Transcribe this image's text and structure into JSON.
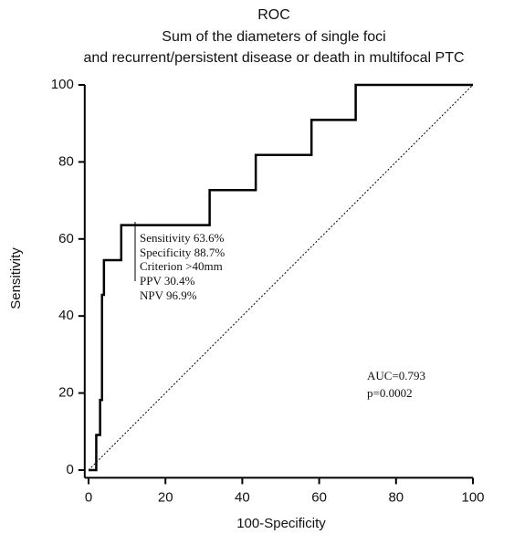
{
  "chart_data": {
    "type": "line",
    "title": "ROC",
    "subtitle": [
      "Sum of the diameters of single foci",
      "and recurrent/persistent disease or death in multifocal PTC"
    ],
    "x_label": "100-Specificity",
    "y_label": "Sensitivity",
    "xlim": [
      -1,
      100
    ],
    "ylim": [
      -2,
      100
    ],
    "xticks": [
      0,
      20,
      40,
      60,
      80,
      100
    ],
    "yticks": [
      0,
      20,
      40,
      60,
      80,
      100
    ],
    "series": [
      {
        "color": "#000000",
        "style": "solid",
        "x": [
          0,
          2,
          2,
          3,
          3,
          3.5,
          3.5,
          4,
          4,
          8.5,
          8.5,
          31.5,
          31.5,
          43.5,
          43.5,
          58,
          58,
          69.5,
          69.5,
          100
        ],
        "values": [
          0,
          0,
          9.1,
          9.1,
          18.2,
          18.2,
          45.5,
          45.5,
          54.5,
          54.5,
          63.6,
          63.6,
          72.7,
          72.7,
          81.8,
          81.8,
          90.9,
          90.9,
          100,
          100
        ]
      },
      {
        "color": "#000000",
        "style": "dotted",
        "x": [
          0,
          100
        ],
        "values": [
          0,
          100
        ]
      }
    ],
    "annotations": [
      "Sensitivity 63.6%",
      "Specificity 88.7%",
      "Criterion >40mm",
      "PPV 30.4%",
      "NPV 96.9%",
      "AUC=0.793",
      "p=0.0002"
    ]
  }
}
